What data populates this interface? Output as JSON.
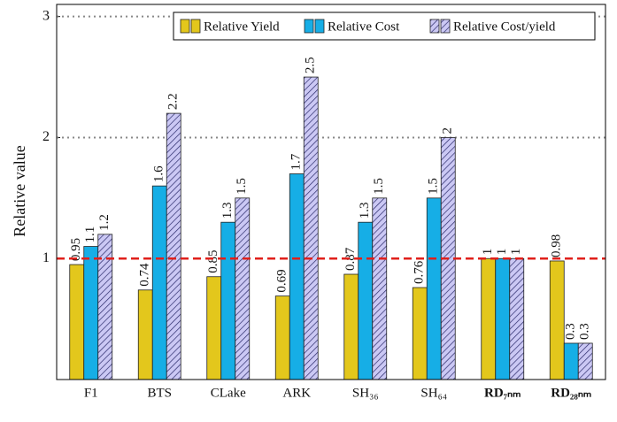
{
  "chart_data": {
    "type": "bar",
    "y_label": "Relative value",
    "categories": [
      "F1",
      "BTS",
      "CLake",
      "ARK",
      "SH₃₆",
      "SH₆₄",
      "RD₇ₙₘ",
      "RD₂₈ₙₘ"
    ],
    "series": [
      {
        "name": "Relative Yield",
        "color": "#e3c71c",
        "values": [
          0.95,
          0.74,
          0.85,
          0.69,
          0.87,
          0.76,
          1,
          0.98
        ]
      },
      {
        "name": "Relative Cost",
        "color": "#16aee6",
        "values": [
          1.1,
          1.6,
          1.3,
          1.7,
          1.3,
          1.5,
          1,
          0.3
        ]
      },
      {
        "name": "Relative Cost/yield",
        "color": "#cbc8f4",
        "hatch": true,
        "values": [
          1.2,
          2.2,
          1.5,
          2.5,
          1.5,
          2,
          1,
          0.3
        ]
      }
    ],
    "ylim": [
      0,
      3.1
    ],
    "yticks": [
      1,
      2,
      3
    ],
    "grid": true,
    "reference_line": {
      "value": 1,
      "color": "#e0201b"
    },
    "legend": "top-right"
  }
}
